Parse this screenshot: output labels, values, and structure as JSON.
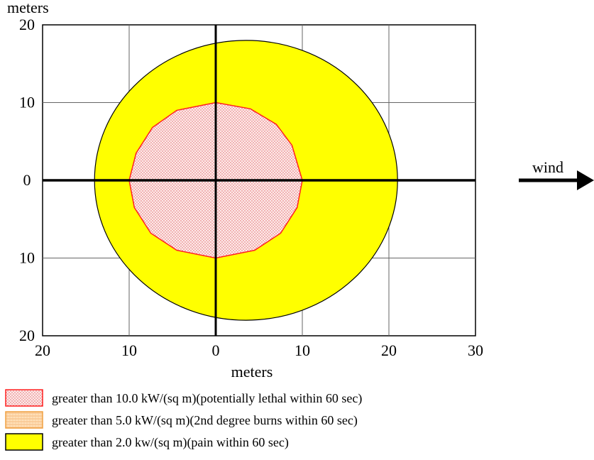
{
  "chart_data": {
    "type": "area",
    "ylabel": "meters",
    "xlabel": "meters",
    "xlim": [
      -20,
      30
    ],
    "ylim": [
      -20,
      20
    ],
    "x_ticks": [
      {
        "value": -20,
        "label": "20"
      },
      {
        "value": -10,
        "label": "10"
      },
      {
        "value": 0,
        "label": "0"
      },
      {
        "value": 10,
        "label": "10"
      },
      {
        "value": 20,
        "label": "20"
      },
      {
        "value": 30,
        "label": "30"
      }
    ],
    "y_ticks": [
      {
        "value": 20,
        "label": "20"
      },
      {
        "value": 10,
        "label": "10"
      },
      {
        "value": 0,
        "label": "0"
      },
      {
        "value": -10,
        "label": "10"
      },
      {
        "value": -20,
        "label": "20"
      }
    ],
    "grid": true,
    "legend_position": "bottom",
    "wind_label": "wind",
    "series": [
      {
        "name": "greater than 2.0 kw/(sq m)(pain within 60 sec)",
        "fill": "#ffff00",
        "stroke": "#000000",
        "pattern": "solid",
        "center": [
          3.5,
          0
        ],
        "radii": [
          17.5,
          18
        ],
        "points": []
      },
      {
        "name": "greater than 5.0 kW/(sq m)(2nd degree burns within 60 sec)",
        "fill": "#ffd9a8",
        "stroke": "#f0a040",
        "pattern": "hatch",
        "points": []
      },
      {
        "name": "greater than 10.0 kW/(sq m)(potentially lethal within 60 sec)",
        "fill": "#fdeaea",
        "stroke": "#ff2020",
        "pattern": "dots",
        "points": [
          [
            0,
            10
          ],
          [
            4,
            9.2
          ],
          [
            7,
            7.2
          ],
          [
            8.8,
            4.5
          ],
          [
            10,
            0
          ],
          [
            9.4,
            -3.5
          ],
          [
            7.5,
            -6.8
          ],
          [
            4.5,
            -9
          ],
          [
            0,
            -10
          ],
          [
            -4.5,
            -9
          ],
          [
            -7.5,
            -6.8
          ],
          [
            -9.4,
            -3.5
          ],
          [
            -10,
            0
          ],
          [
            -9.2,
            3.5
          ],
          [
            -7.3,
            6.8
          ],
          [
            -4.5,
            9
          ],
          [
            0,
            10
          ]
        ]
      }
    ],
    "legend": [
      "greater than 10.0 kW/(sq m)(potentially lethal within 60 sec)",
      "greater than 5.0 kW/(sq m)(2nd degree burns within 60 sec)",
      "greater than 2.0 kw/(sq m)(pain within 60 sec)"
    ]
  }
}
